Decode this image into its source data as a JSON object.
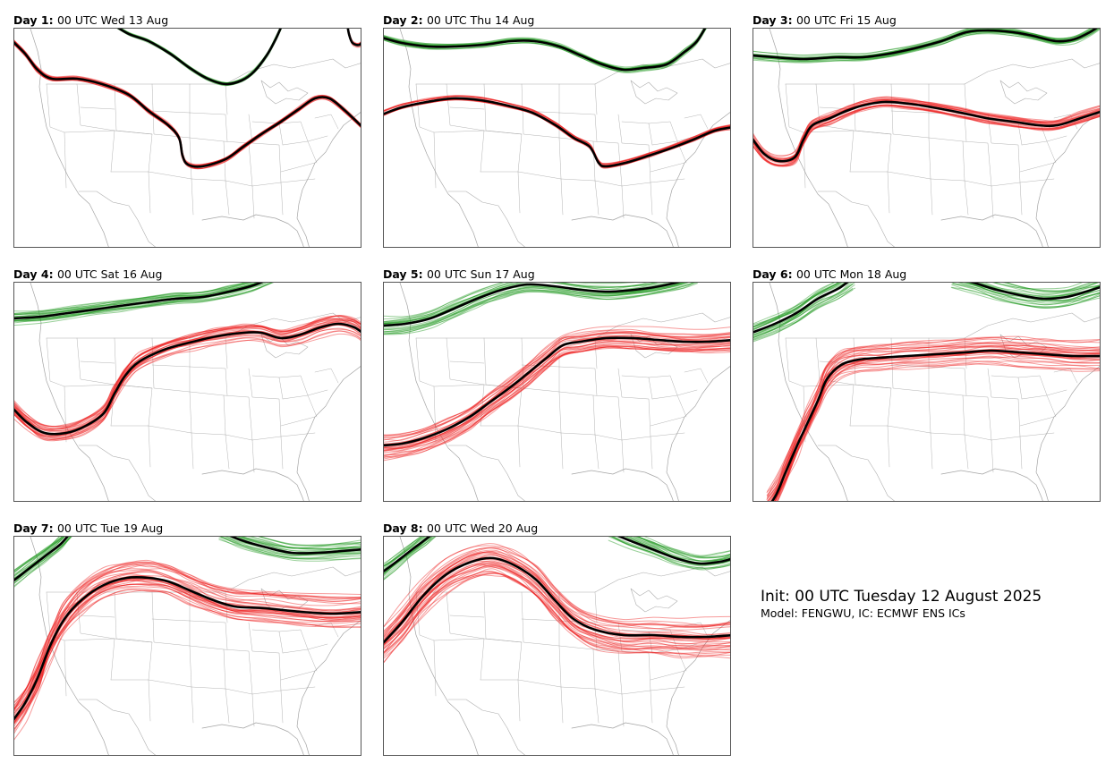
{
  "panels": [
    {
      "day": "Day 1",
      "valid": "00 UTC Wed 13 Aug"
    },
    {
      "day": "Day 2",
      "valid": "00 UTC Thu 14 Aug"
    },
    {
      "day": "Day 3",
      "valid": "00 UTC Fri 15 Aug"
    },
    {
      "day": "Day 4",
      "valid": "00 UTC Sat 16 Aug"
    },
    {
      "day": "Day 5",
      "valid": "00 UTC Sun 17 Aug"
    },
    {
      "day": "Day 6",
      "valid": "00 UTC Mon 18 Aug"
    },
    {
      "day": "Day 7",
      "valid": "00 UTC Tue 19 Aug"
    },
    {
      "day": "Day 8",
      "valid": "00 UTC Wed 20 Aug"
    }
  ],
  "info": {
    "init": "Init: 00 UTC Tuesday 12 August 2025",
    "model": "Model: FENGWU, IC: ECMWF ENS ICs"
  },
  "colors": {
    "southern_contour": "#ee2222",
    "northern_contour": "#229922",
    "ensemble_mean": "#000000",
    "map_lines": "#9a9a9a"
  }
}
